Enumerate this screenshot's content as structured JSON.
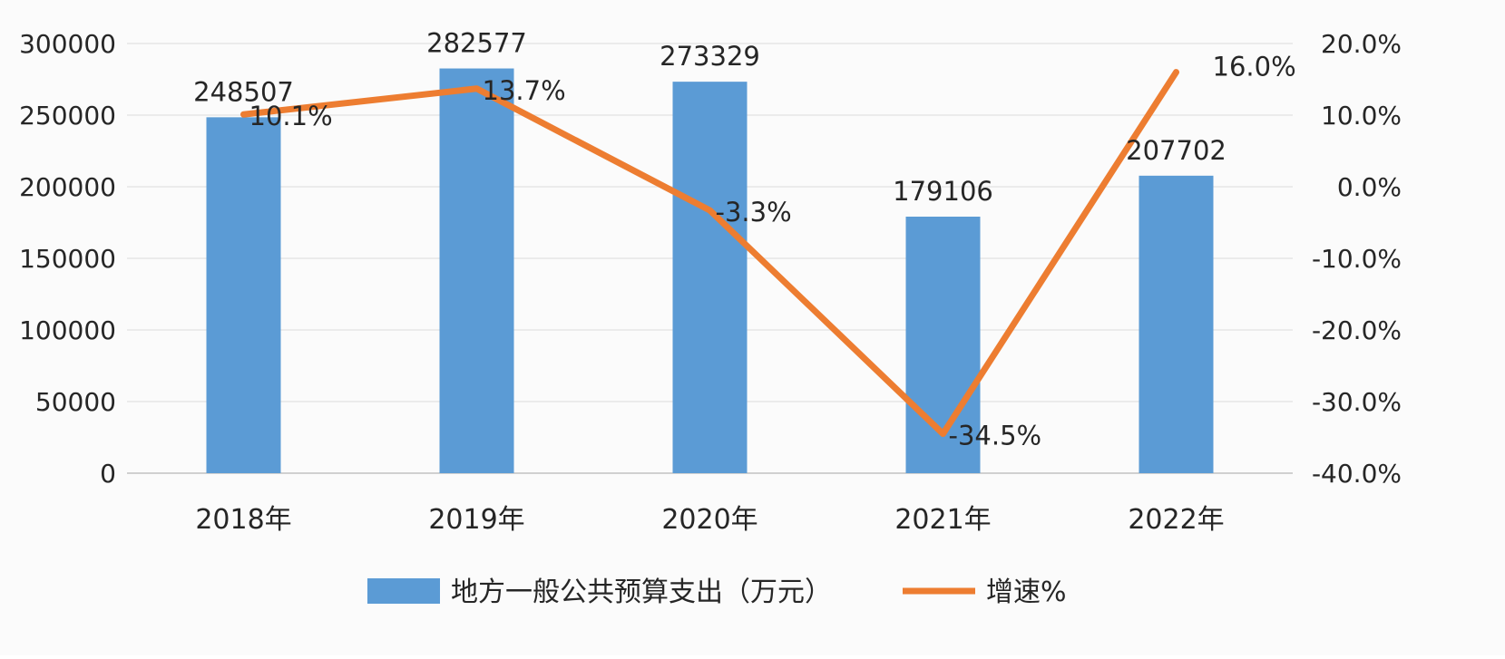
{
  "chart_data": {
    "type": "bar",
    "categories": [
      "2018年",
      "2019年",
      "2020年",
      "2021年",
      "2022年"
    ],
    "series": [
      {
        "name": "地方一般公共预算支出（万元）",
        "type": "bar",
        "axis": "left",
        "values": [
          248507,
          282577,
          273329,
          179106,
          207702
        ],
        "labels": [
          "248507",
          "282577",
          "273329",
          "179106",
          "207702"
        ],
        "color": "#5b9bd5"
      },
      {
        "name": "增速%",
        "type": "line",
        "axis": "right",
        "values": [
          10.1,
          13.7,
          -3.3,
          -34.5,
          16.0
        ],
        "labels": [
          "10.1%",
          "13.7%",
          "-3.3%",
          "-34.5%",
          "16.0%"
        ],
        "color": "#ed7d31"
      }
    ],
    "y_left": {
      "ylim": [
        0,
        300000
      ],
      "ticks": [
        0,
        50000,
        100000,
        150000,
        200000,
        250000,
        300000
      ],
      "tick_labels": [
        "0",
        "50000",
        "100000",
        "150000",
        "200000",
        "250000",
        "300000"
      ]
    },
    "y_right": {
      "ylim": [
        -40,
        20
      ],
      "ticks": [
        -40,
        -30,
        -20,
        -10,
        0,
        10,
        20
      ],
      "tick_labels": [
        "-40.0%",
        "-30.0%",
        "-20.0%",
        "-10.0%",
        "0.0%",
        "10.0%",
        "20.0%"
      ]
    },
    "grid": true,
    "legend_position": "bottom"
  }
}
